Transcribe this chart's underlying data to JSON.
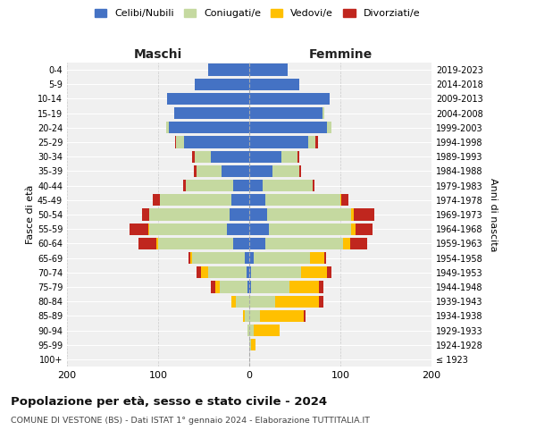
{
  "age_groups": [
    "100+",
    "95-99",
    "90-94",
    "85-89",
    "80-84",
    "75-79",
    "70-74",
    "65-69",
    "60-64",
    "55-59",
    "50-54",
    "45-49",
    "40-44",
    "35-39",
    "30-34",
    "25-29",
    "20-24",
    "15-19",
    "10-14",
    "5-9",
    "0-4"
  ],
  "birth_years": [
    "≤ 1923",
    "1924-1928",
    "1929-1933",
    "1934-1938",
    "1939-1943",
    "1944-1948",
    "1949-1953",
    "1954-1958",
    "1959-1963",
    "1964-1968",
    "1969-1973",
    "1974-1978",
    "1979-1983",
    "1984-1988",
    "1989-1993",
    "1994-1998",
    "1999-2003",
    "2004-2008",
    "2009-2013",
    "2014-2018",
    "2019-2023"
  ],
  "maschi": {
    "celibi": [
      0,
      0,
      0,
      0,
      0,
      2,
      3,
      5,
      18,
      25,
      22,
      20,
      18,
      30,
      42,
      72,
      88,
      82,
      90,
      60,
      45
    ],
    "coniugati": [
      0,
      0,
      2,
      5,
      15,
      30,
      42,
      58,
      82,
      85,
      88,
      78,
      52,
      28,
      18,
      8,
      3,
      0,
      0,
      0,
      0
    ],
    "vedovi": [
      0,
      0,
      0,
      2,
      5,
      5,
      8,
      2,
      2,
      1,
      0,
      0,
      0,
      0,
      0,
      0,
      0,
      0,
      0,
      0,
      0
    ],
    "divorziati": [
      0,
      0,
      0,
      0,
      0,
      5,
      5,
      2,
      20,
      20,
      8,
      8,
      3,
      3,
      3,
      1,
      0,
      0,
      0,
      0,
      0
    ]
  },
  "femmine": {
    "nubili": [
      0,
      0,
      0,
      0,
      0,
      2,
      2,
      5,
      18,
      22,
      20,
      18,
      15,
      25,
      35,
      65,
      85,
      80,
      88,
      55,
      42
    ],
    "coniugate": [
      0,
      2,
      5,
      12,
      28,
      42,
      55,
      62,
      85,
      90,
      92,
      82,
      55,
      30,
      18,
      8,
      5,
      2,
      0,
      0,
      0
    ],
    "vedove": [
      0,
      5,
      28,
      48,
      48,
      32,
      28,
      15,
      8,
      5,
      3,
      1,
      0,
      0,
      0,
      0,
      0,
      0,
      0,
      0,
      0
    ],
    "divorziate": [
      0,
      0,
      0,
      2,
      5,
      5,
      5,
      2,
      18,
      18,
      22,
      8,
      2,
      2,
      2,
      2,
      0,
      0,
      0,
      0,
      0
    ]
  },
  "colors": {
    "celibi": "#4472c4",
    "coniugati": "#c5d9a0",
    "vedovi": "#ffc000",
    "divorziati": "#c0261e"
  },
  "title": "Popolazione per età, sesso e stato civile - 2024",
  "subtitle": "COMUNE DI VESTONE (BS) - Dati ISTAT 1° gennaio 2024 - Elaborazione TUTTITALIA.IT",
  "xlabel_maschi": "Maschi",
  "xlabel_femmine": "Femmine",
  "ylabel": "Fasce di età",
  "ylabel_right": "Anni di nascita",
  "xlim": 200,
  "bg_color": "#f0f0f0",
  "legend_labels": [
    "Celibi/Nubili",
    "Coniugati/e",
    "Vedovi/e",
    "Divorziati/e"
  ]
}
